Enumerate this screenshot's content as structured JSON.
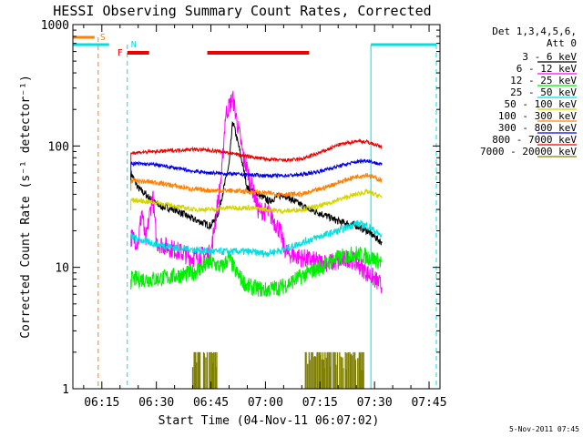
{
  "chart_data": {
    "type": "line",
    "title": "HESSI Observing Summary Count Rates, Corrected",
    "xlabel": "Start Time (04-Nov-11 06:07:02)",
    "ylabel": "Corrected Count Rate (s⁻¹ detector⁻¹)",
    "y_scale": "log",
    "ylim": [
      1,
      1000
    ],
    "xlim": [
      "06:07:02",
      "07:48:00"
    ],
    "x_ticks": [
      "06:15",
      "06:30",
      "06:45",
      "07:00",
      "07:15",
      "07:30",
      "07:45"
    ],
    "y_ticks": [
      "1",
      "10",
      "100",
      "1000"
    ],
    "legend_header": [
      "Det 1,3,4,5,6,",
      "Att 0"
    ],
    "legend_position": "right",
    "date_stamp": "5-Nov-2011 07:45",
    "series": [
      {
        "name": "3 - 6 keV",
        "color": "#000000",
        "x": [
          "06:23",
          "06:25",
          "06:27",
          "06:29",
          "06:31",
          "06:35",
          "06:40",
          "06:45",
          "06:47",
          "06:50",
          "06:51",
          "06:53",
          "06:55",
          "06:58",
          "07:01",
          "07:03",
          "07:05",
          "07:08",
          "07:12",
          "07:15",
          "07:20",
          "07:25",
          "07:28",
          "07:32"
        ],
        "y": [
          60,
          45,
          40,
          35,
          32,
          30,
          25,
          22,
          28,
          70,
          160,
          90,
          45,
          40,
          35,
          38,
          40,
          35,
          30,
          28,
          24,
          22,
          20,
          16
        ]
      },
      {
        "name": "6 - 12 keV",
        "color": "#ff00ff",
        "x": [
          "06:23",
          "06:25",
          "06:26",
          "06:27",
          "06:29",
          "06:30",
          "06:35",
          "06:40",
          "06:45",
          "06:48",
          "06:49",
          "06:51",
          "06:54",
          "06:56",
          "06:58",
          "07:01",
          "07:04",
          "07:05",
          "07:06",
          "07:10",
          "07:15",
          "07:20",
          "07:23",
          "07:25",
          "07:28",
          "07:30",
          "07:32"
        ],
        "y": [
          18,
          16,
          30,
          16,
          40,
          16,
          14,
          12,
          13,
          60,
          180,
          250,
          80,
          50,
          30,
          28,
          20,
          15,
          13,
          12,
          11,
          11,
          12,
          11,
          9,
          8,
          7
        ]
      },
      {
        "name": "12 - 25 keV",
        "color": "#00ee00",
        "x": [
          "06:23",
          "06:30",
          "06:35",
          "06:40",
          "06:45",
          "06:48",
          "06:50",
          "06:52",
          "06:55",
          "07:00",
          "07:05",
          "07:10",
          "07:15",
          "07:20",
          "07:25",
          "07:29",
          "07:32"
        ],
        "y": [
          8,
          8,
          8.5,
          9,
          11,
          10,
          12,
          9,
          7,
          6.5,
          7,
          8.5,
          10,
          12,
          13,
          12,
          11
        ]
      },
      {
        "name": "25 - 50 keV",
        "color": "#00e0e0",
        "x": [
          "06:23",
          "06:25",
          "06:30",
          "06:35",
          "06:40",
          "06:45",
          "06:50",
          "06:55",
          "07:00",
          "07:05",
          "07:10",
          "07:15",
          "07:20",
          "07:25",
          "07:28",
          "07:30",
          "07:32"
        ],
        "y": [
          18,
          17,
          15.5,
          14.5,
          14,
          13.5,
          13.5,
          13.5,
          13,
          14,
          16,
          18,
          20,
          23,
          22,
          20,
          18
        ]
      },
      {
        "name": "50 - 100 keV",
        "color": "#d4d400",
        "x": [
          "06:23",
          "06:30",
          "06:35",
          "06:40",
          "06:45",
          "06:50",
          "06:55",
          "07:00",
          "07:05",
          "07:10",
          "07:15",
          "07:20",
          "07:25",
          "07:28",
          "07:32"
        ],
        "y": [
          36,
          34,
          32,
          30,
          30,
          31,
          31,
          30,
          29,
          30,
          32,
          36,
          40,
          42,
          38
        ]
      },
      {
        "name": "100 - 300 keV",
        "color": "#ff8000",
        "x": [
          "06:23",
          "06:30",
          "06:35",
          "06:40",
          "06:45",
          "06:50",
          "06:55",
          "07:00",
          "07:05",
          "07:10",
          "07:15",
          "07:20",
          "07:25",
          "07:28",
          "07:32"
        ],
        "y": [
          52,
          50,
          47,
          44,
          43,
          43,
          42,
          41,
          40,
          40,
          44,
          50,
          56,
          58,
          52
        ]
      },
      {
        "name": "300 - 800 keV",
        "color": "#0000ee",
        "x": [
          "06:23",
          "06:30",
          "06:35",
          "06:40",
          "06:45",
          "06:50",
          "06:55",
          "07:00",
          "07:05",
          "07:10",
          "07:15",
          "07:20",
          "07:25",
          "07:28",
          "07:32"
        ],
        "y": [
          72,
          70,
          66,
          62,
          60,
          59,
          58,
          57,
          57,
          58,
          62,
          68,
          74,
          76,
          70
        ]
      },
      {
        "name": "800 - 7000 keV",
        "color": "#ee0000",
        "x": [
          "06:23",
          "06:30",
          "06:35",
          "06:40",
          "06:45",
          "06:50",
          "06:55",
          "07:00",
          "07:05",
          "07:10",
          "07:15",
          "07:20",
          "07:25",
          "07:28",
          "07:32"
        ],
        "y": [
          88,
          90,
          92,
          94,
          92,
          88,
          82,
          78,
          76,
          78,
          88,
          102,
          110,
          108,
          98
        ]
      },
      {
        "name": "7000 - 20000 keV",
        "color": "#808000",
        "x": [],
        "y": []
      }
    ],
    "annotations": {
      "S_label": "S",
      "N_label": "N",
      "F_label": "F",
      "S_color": "#ff8000",
      "N_color": "#00e0e0",
      "F_color": "#ee0000",
      "S_bar": [
        "06:07:02",
        "06:13"
      ],
      "S_marker": "06:14",
      "N_bars": [
        [
          "06:07:02",
          "06:17"
        ],
        [
          "07:29",
          "07:47"
        ]
      ],
      "N_markers": [
        "06:22",
        "07:29",
        "07:47"
      ],
      "F_bars": [
        [
          "06:22",
          "06:28"
        ],
        [
          "06:44",
          "07:12"
        ]
      ],
      "bg_7000_20000_spans": [
        [
          "06:40",
          "06:47"
        ],
        [
          "07:11",
          "07:27"
        ]
      ]
    }
  }
}
